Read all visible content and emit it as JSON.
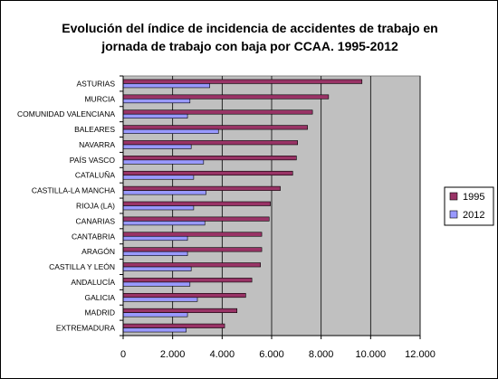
{
  "title_lines": [
    "Evolución del índice de incidencia de accidentes de trabajo en",
    "jornada de trabajo con baja por CCAA. 1995-2012"
  ],
  "colors": {
    "plot_bg": "#c0c0c0",
    "series_1995": "#993366",
    "series_2012": "#9999ff",
    "bar_stroke": "#000000",
    "grid": "#000000"
  },
  "chart_data": {
    "type": "bar",
    "orientation": "horizontal",
    "title": "Evolución del índice de incidencia de accidentes de trabajo en jornada de trabajo con baja por CCAA. 1995-2012",
    "categories": [
      "ASTURIAS",
      "MURCIA",
      "COMUNIDAD VALENCIANA",
      "BALEARES",
      "NAVARRA",
      "PAÍS VASCO",
      "CATALUÑA",
      "CASTILLA-LA MANCHA",
      "RIOJA (LA)",
      "CANARIAS",
      "CANTABRIA",
      "ARAGÓN",
      "CASTILLA Y LEÓN",
      "ANDALUCÍA",
      "GALICIA",
      "MADRID",
      "EXTREMADURA"
    ],
    "series": [
      {
        "name": "1995",
        "values": [
          9650,
          8300,
          7650,
          7450,
          7050,
          7000,
          6850,
          6350,
          5950,
          5900,
          5600,
          5600,
          5550,
          5200,
          4950,
          4600,
          4100
        ]
      },
      {
        "name": "2012",
        "values": [
          3500,
          2700,
          2600,
          3850,
          2750,
          3250,
          2850,
          3350,
          2850,
          3300,
          2600,
          2600,
          2750,
          2700,
          3000,
          2600,
          2550
        ]
      }
    ],
    "xlim": [
      0,
      12000
    ],
    "xticks": [
      0,
      2000,
      4000,
      6000,
      8000,
      10000,
      12000
    ],
    "xtick_labels": [
      "0",
      "2.000",
      "4.000",
      "6.000",
      "8.000",
      "10.000",
      "12.000"
    ],
    "xlabel": "",
    "ylabel": "",
    "grid": "vertical",
    "legend": "right",
    "legend_entries": [
      "1995",
      "2012"
    ]
  }
}
